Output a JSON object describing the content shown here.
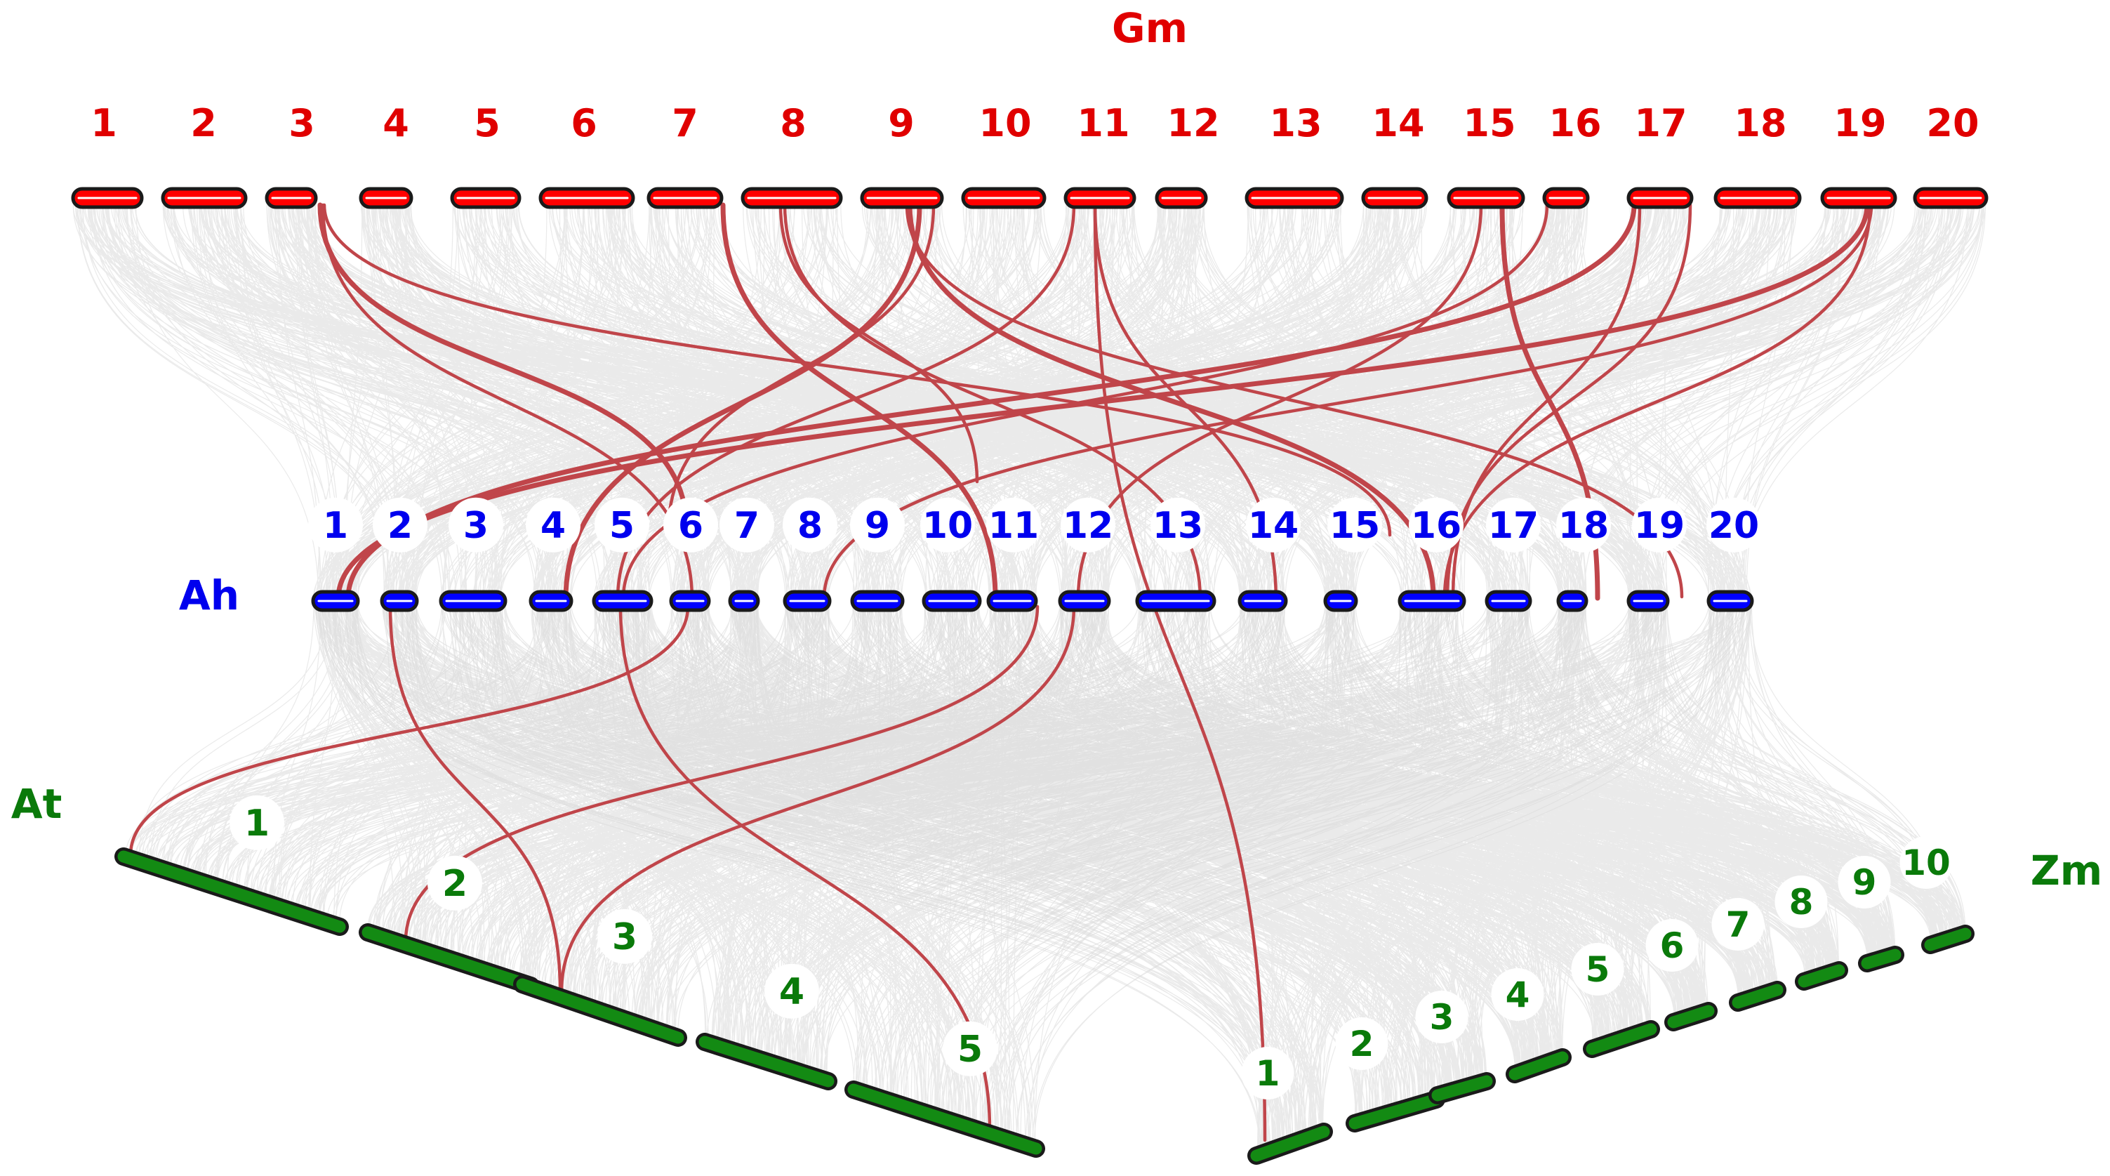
{
  "genomes": {
    "gm": {
      "name": "Gm",
      "color": "#e00000",
      "bar_color": "#ff0000",
      "chromosomes": [
        "1",
        "2",
        "3",
        "4",
        "5",
        "6",
        "7",
        "8",
        "9",
        "10",
        "11",
        "12",
        "13",
        "14",
        "15",
        "16",
        "17",
        "18",
        "19",
        "20"
      ]
    },
    "ah": {
      "name": "Ah",
      "color": "#0000ee",
      "bar_color": "#0000ff",
      "chromosomes": [
        "1",
        "2",
        "3",
        "4",
        "5",
        "6",
        "7",
        "8",
        "9",
        "10",
        "11",
        "12",
        "13",
        "14",
        "15",
        "16",
        "17",
        "18",
        "19",
        "20"
      ]
    },
    "at": {
      "name": "At",
      "color": "#0a7a0a",
      "bar_color": "#138a13",
      "chromosomes": [
        "1",
        "2",
        "3",
        "4",
        "5"
      ]
    },
    "zm": {
      "name": "Zm",
      "color": "#0a7a0a",
      "bar_color": "#138a13",
      "chromosomes": [
        "1",
        "2",
        "3",
        "4",
        "5",
        "6",
        "7",
        "8",
        "9",
        "10"
      ]
    }
  },
  "colors": {
    "background_link": "#d9d9d9",
    "highlight_link": "#c0454a",
    "bar_outline": "#1a1a1a"
  }
}
